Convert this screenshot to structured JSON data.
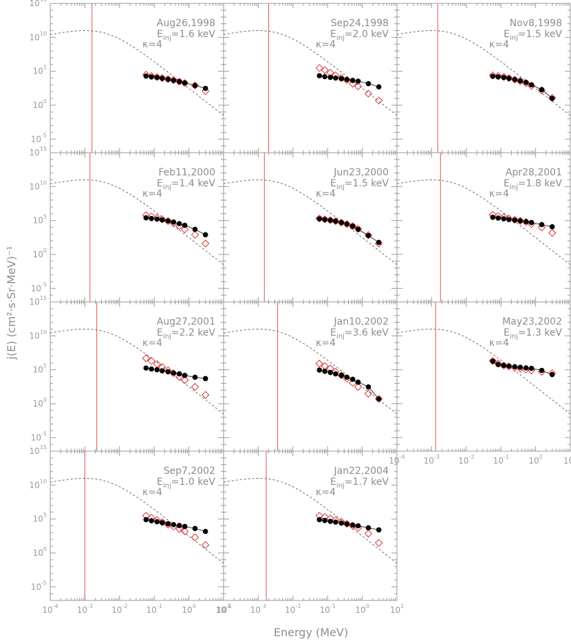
{
  "figure": {
    "xlabel": "Energy (MeV)",
    "ylabel": "j(E)  (cm²·s·Sr·MeV)⁻¹",
    "xscale": "log",
    "yscale": "log",
    "xlim": [
      0.0001,
      10
    ],
    "ylim": [
      1e-07,
      1000000000000000
    ],
    "x_ticks": [
      {
        "base": "10",
        "exp": "-4"
      },
      {
        "base": "10",
        "exp": "-3"
      },
      {
        "base": "10",
        "exp": "-2"
      },
      {
        "base": "10",
        "exp": "-1"
      },
      {
        "base": "10",
        "exp": "0"
      },
      {
        "base": "10",
        "exp": "1"
      }
    ],
    "y_ticks": [
      {
        "base": "10",
        "exp": "-5"
      },
      {
        "base": "10",
        "exp": "0"
      },
      {
        "base": "10",
        "exp": "5"
      },
      {
        "base": "10",
        "exp": "10"
      },
      {
        "base": "10",
        "exp": "15"
      }
    ],
    "kappa_label": "κ=4",
    "einj_prefix": "E",
    "einj_sub": "inj",
    "colors": {
      "frame": "#999999",
      "model": "#555555",
      "inj_line": "#e05050",
      "measured_open": "#e03030",
      "fit_filled": "#000000",
      "text": "#8c8c8c"
    }
  },
  "chart_data": [
    {
      "type": "scatter",
      "date": "Aug26,1998",
      "einj": "=1.6 keV",
      "kappa": "κ=4",
      "inj_energy_mev": 0.0016,
      "x": [
        0.058,
        0.083,
        0.12,
        0.17,
        0.25,
        0.36,
        0.53,
        0.76,
        1.5,
        3.0
      ],
      "measured": [
        31000,
        20000,
        14000,
        10000,
        7000,
        5000,
        3000,
        1800,
        800,
        120
      ],
      "model": [
        20000,
        15000,
        12000,
        9000,
        6500,
        4500,
        3000,
        2000,
        800,
        300
      ]
    },
    {
      "type": "scatter",
      "date": "Sep24,1998",
      "einj": "=2.0 keV",
      "kappa": "κ=4",
      "inj_energy_mev": 0.002,
      "x": [
        0.058,
        0.083,
        0.12,
        0.17,
        0.25,
        0.36,
        0.53,
        0.76,
        1.5,
        3.0
      ],
      "measured": [
        300000,
        150000,
        60000,
        25000,
        10000,
        5000,
        1500,
        600,
        50,
        5
      ],
      "model": [
        22000,
        16000,
        13000,
        10000,
        8000,
        6000,
        4500,
        3500,
        1500,
        500
      ]
    },
    {
      "type": "scatter",
      "date": "Nov8,1998",
      "einj": "=1.5 keV",
      "kappa": "κ=4",
      "inj_energy_mev": 0.0015,
      "x": [
        0.058,
        0.083,
        0.12,
        0.17,
        0.25,
        0.36,
        0.53,
        0.76,
        1.5,
        3.0
      ],
      "measured": [
        25000,
        20000,
        15000,
        10000,
        6000,
        3500,
        1800,
        700,
        150,
        12
      ],
      "model": [
        18000,
        15000,
        12000,
        9000,
        6000,
        4000,
        2300,
        1000,
        200,
        10
      ]
    },
    {
      "type": "scatter",
      "date": "Feb11,2000",
      "einj": "=1.4 keV",
      "kappa": "κ=4",
      "inj_energy_mev": 0.0014,
      "x": [
        0.058,
        0.083,
        0.12,
        0.17,
        0.25,
        0.36,
        0.53,
        0.76,
        1.5,
        3.0
      ],
      "measured": [
        600000,
        400000,
        250000,
        150000,
        80000,
        40000,
        15000,
        5000,
        800,
        40
      ],
      "model": [
        250000,
        200000,
        160000,
        120000,
        90000,
        60000,
        35000,
        20000,
        5000,
        800
      ]
    },
    {
      "type": "scatter",
      "date": "Jun23,2000",
      "einj": "=1.5 keV",
      "kappa": "κ=4",
      "inj_energy_mev": 0.0015,
      "x": [
        0.058,
        0.083,
        0.12,
        0.17,
        0.25,
        0.36,
        0.53,
        0.76,
        1.5,
        3.0
      ],
      "measured": [
        200000,
        150000,
        110000,
        80000,
        50000,
        30000,
        15000,
        6000,
        700,
        40
      ],
      "model": [
        180000,
        140000,
        110000,
        80000,
        50000,
        30000,
        15000,
        5000,
        600,
        60
      ]
    },
    {
      "type": "scatter",
      "date": "Apr28,2001",
      "einj": "=1.8 keV",
      "kappa": "κ=4",
      "inj_energy_mev": 0.0018,
      "x": [
        0.058,
        0.083,
        0.12,
        0.17,
        0.25,
        0.36,
        0.53,
        0.76,
        1.5,
        3.0
      ],
      "measured": [
        700000,
        450000,
        300000,
        200000,
        130000,
        90000,
        60000,
        30000,
        10000,
        1500
      ],
      "model": [
        300000,
        230000,
        180000,
        140000,
        110000,
        90000,
        70000,
        50000,
        25000,
        12000
      ]
    },
    {
      "type": "scatter",
      "date": "Aug27,2001",
      "einj": "=2.2 keV",
      "kappa": "κ=4",
      "inj_energy_mev": 0.0022,
      "x": [
        0.058,
        0.083,
        0.12,
        0.17,
        0.25,
        0.36,
        0.53,
        0.76,
        1.5,
        3.0
      ],
      "measured": [
        5000000,
        2000000,
        700000,
        250000,
        80000,
        30000,
        9000,
        3000,
        300,
        20
      ],
      "model": [
        180000,
        130000,
        100000,
        70000,
        50000,
        35000,
        25000,
        15000,
        8000,
        5000
      ]
    },
    {
      "type": "scatter",
      "date": "Jan10,2002",
      "einj": "=3.6 keV",
      "kappa": "κ=4",
      "inj_energy_mev": 0.0036,
      "x": [
        0.058,
        0.083,
        0.12,
        0.17,
        0.25,
        0.36,
        0.53,
        0.76,
        1.5,
        3.0
      ],
      "measured": [
        800000,
        350000,
        150000,
        50000,
        15000,
        5000,
        1200,
        300,
        30,
        5
      ],
      "model": [
        90000,
        60000,
        40000,
        25000,
        15000,
        8000,
        4000,
        1500,
        300,
        5
      ]
    },
    {
      "type": "scatter",
      "date": "May23,2002",
      "einj": "=1.3 keV",
      "kappa": "κ=4",
      "inj_energy_mev": 0.0013,
      "x": [
        0.058,
        0.083,
        0.12,
        0.17,
        0.25,
        0.36,
        0.53,
        0.76,
        1.5,
        3.0
      ],
      "measured": [
        2000000,
        800000,
        400000,
        300000,
        200000,
        150000,
        110000,
        80000,
        50000,
        30000
      ],
      "model": [
        1800000,
        600000,
        450000,
        350000,
        280000,
        230000,
        190000,
        160000,
        80000,
        20000
      ]
    },
    {
      "type": "scatter",
      "date": "Sep7,2002",
      "einj": "=1.0 keV",
      "kappa": "κ=4",
      "inj_energy_mev": 0.001,
      "x": [
        0.058,
        0.083,
        0.12,
        0.17,
        0.25,
        0.36,
        0.53,
        0.76,
        1.5,
        3.0
      ],
      "measured": [
        300000,
        150000,
        70000,
        35000,
        15000,
        8000,
        3500,
        1500,
        200,
        15
      ],
      "model": [
        80000,
        55000,
        40000,
        28000,
        20000,
        15000,
        11000,
        8000,
        4000,
        1500
      ]
    },
    {
      "type": "scatter",
      "date": "Jan22,2004",
      "einj": "=1.7 keV",
      "kappa": "κ=4",
      "inj_energy_mev": 0.0017,
      "x": [
        0.058,
        0.083,
        0.12,
        0.17,
        0.25,
        0.36,
        0.53,
        0.76,
        1.5,
        3.0
      ],
      "measured": [
        300000,
        200000,
        120000,
        70000,
        40000,
        20000,
        10000,
        5000,
        700,
        30
      ],
      "model": [
        80000,
        60000,
        45000,
        35000,
        25000,
        18000,
        13000,
        10000,
        5000,
        2500
      ]
    }
  ]
}
